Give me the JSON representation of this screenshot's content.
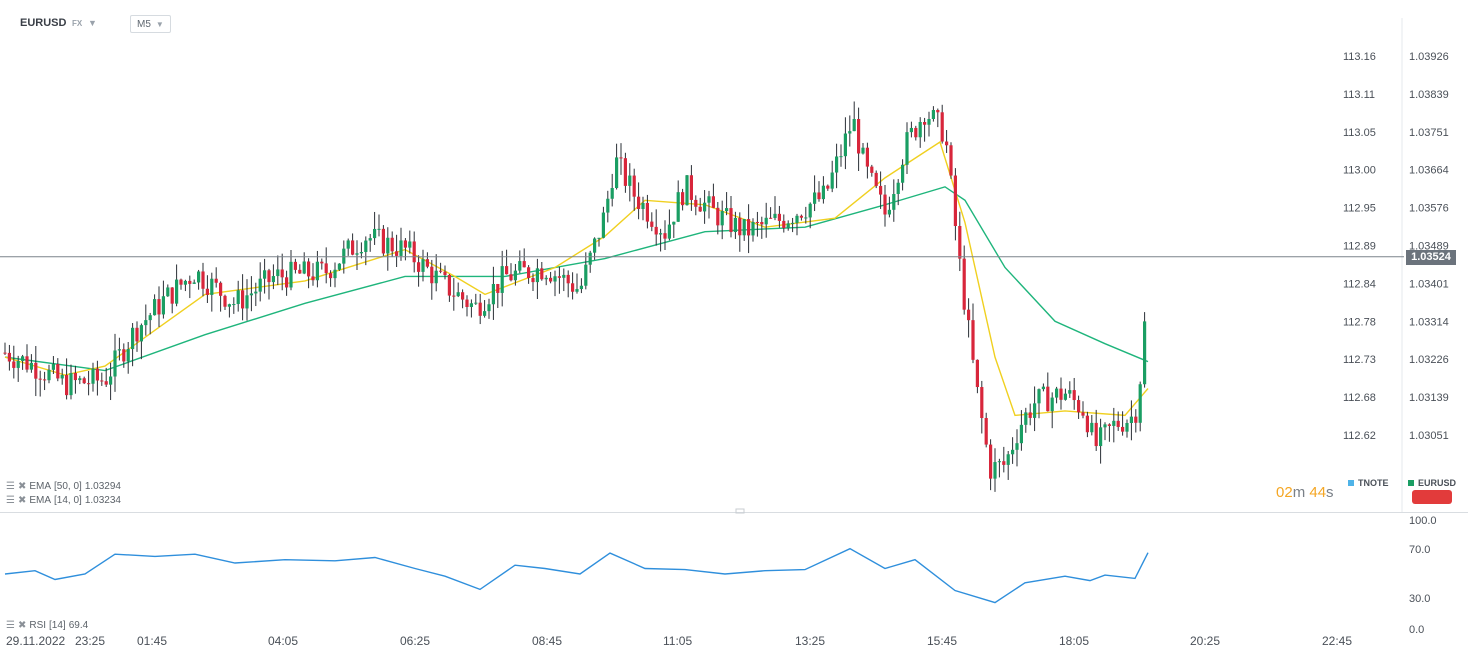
{
  "toolbar": {
    "symbol": "EURUSD",
    "market": "FX",
    "timeframe": "M5"
  },
  "indicators": [
    {
      "name": "EMA",
      "params": "[50, 0]",
      "value": "1.03294",
      "color": "#1fb57c"
    },
    {
      "name": "EMA",
      "params": "[14, 0]",
      "value": "1.03234",
      "color": "#f0d020"
    }
  ],
  "rsi_label": {
    "name": "RSI",
    "params": "[14]",
    "value": "69.4",
    "color": "#2f8fdc"
  },
  "countdown": {
    "minutes": "02",
    "m": "m",
    "seconds": "44",
    "s": "s"
  },
  "legend": [
    {
      "label": "TNOTE",
      "color": "#4fb3e8"
    },
    {
      "label": "EURUSD",
      "color": "#1a9e63"
    }
  ],
  "current_price": "1.03524",
  "colors": {
    "up": "#1a9e63",
    "down": "#d8263b",
    "ema50": "#1fb57c",
    "ema14": "#f0d020",
    "rsi": "#2f8fdc"
  },
  "chart_data": [
    {
      "type": "candlestick",
      "title": "EURUSD",
      "timeframe": "M5",
      "x_ticks": [
        "29.11.2022",
        "23:25",
        "01:45",
        "04:05",
        "06:25",
        "08:45",
        "11:05",
        "13:25",
        "15:45",
        "18:05",
        "20:25",
        "22:45"
      ],
      "y_ticks_right": [
        "1.03926",
        "1.03839",
        "1.03751",
        "1.03664",
        "1.03576",
        "1.03489",
        "1.03401",
        "1.03314",
        "1.03226",
        "1.03139",
        "1.03051"
      ],
      "y_ticks_left": [
        "113.16",
        "113.11",
        "113.05",
        "113.00",
        "112.95",
        "112.89",
        "112.84",
        "112.78",
        "112.73",
        "112.68",
        "112.62"
      ],
      "ylim": [
        1.0297,
        1.0403
      ],
      "current_price": 1.03524,
      "close_path": [
        [
          0,
          1.0331
        ],
        [
          30,
          1.0328
        ],
        [
          60,
          1.0324
        ],
        [
          100,
          1.0325
        ],
        [
          130,
          1.0336
        ],
        [
          160,
          1.0343
        ],
        [
          190,
          1.0349
        ],
        [
          230,
          1.0342
        ],
        [
          270,
          1.0348
        ],
        [
          320,
          1.0349
        ],
        [
          360,
          1.0357
        ],
        [
          400,
          1.0354
        ],
        [
          440,
          1.0346
        ],
        [
          470,
          1.0341
        ],
        [
          500,
          1.0348
        ],
        [
          540,
          1.035
        ],
        [
          575,
          1.0345
        ],
        [
          600,
          1.0362
        ],
        [
          610,
          1.0374
        ],
        [
          630,
          1.0366
        ],
        [
          660,
          1.0358
        ],
        [
          680,
          1.0368
        ],
        [
          710,
          1.0362
        ],
        [
          740,
          1.0358
        ],
        [
          780,
          1.0361
        ],
        [
          820,
          1.0366
        ],
        [
          848,
          1.0383
        ],
        [
          860,
          1.0372
        ],
        [
          880,
          1.0362
        ],
        [
          900,
          1.0377
        ],
        [
          920,
          1.0385
        ],
        [
          940,
          1.038
        ],
        [
          955,
          1.035
        ],
        [
          970,
          1.0325
        ],
        [
          985,
          1.0305
        ],
        [
          1000,
          1.0306
        ],
        [
          1015,
          1.0315
        ],
        [
          1030,
          1.032
        ],
        [
          1060,
          1.0322
        ],
        [
          1080,
          1.0318
        ],
        [
          1090,
          1.031
        ],
        [
          1110,
          1.0315
        ],
        [
          1130,
          1.0317
        ],
        [
          1138,
          1.033
        ],
        [
          1143,
          1.0352
        ]
      ],
      "ema50_path": [
        [
          0,
          1.033
        ],
        [
          100,
          1.0327
        ],
        [
          200,
          1.0335
        ],
        [
          300,
          1.0342
        ],
        [
          400,
          1.0348
        ],
        [
          500,
          1.0348
        ],
        [
          600,
          1.0352
        ],
        [
          700,
          1.0358
        ],
        [
          800,
          1.0359
        ],
        [
          880,
          1.0364
        ],
        [
          940,
          1.0368
        ],
        [
          960,
          1.0365
        ],
        [
          1000,
          1.035
        ],
        [
          1050,
          1.0338
        ],
        [
          1100,
          1.0333
        ],
        [
          1143,
          1.0329
        ]
      ],
      "ema14_path": [
        [
          0,
          1.033
        ],
        [
          60,
          1.0326
        ],
        [
          100,
          1.0328
        ],
        [
          150,
          1.0336
        ],
        [
          200,
          1.0344
        ],
        [
          300,
          1.0347
        ],
        [
          400,
          1.0354
        ],
        [
          450,
          1.0348
        ],
        [
          480,
          1.0344
        ],
        [
          550,
          1.035
        ],
        [
          600,
          1.0357
        ],
        [
          640,
          1.0365
        ],
        [
          700,
          1.0364
        ],
        [
          760,
          1.0359
        ],
        [
          830,
          1.0361
        ],
        [
          880,
          1.037
        ],
        [
          935,
          1.0378
        ],
        [
          960,
          1.036
        ],
        [
          990,
          1.033
        ],
        [
          1010,
          1.0317
        ],
        [
          1060,
          1.0318
        ],
        [
          1120,
          1.0317
        ],
        [
          1143,
          1.0323
        ]
      ]
    },
    {
      "type": "line",
      "title": "RSI [14]",
      "y_ticks": [
        "100.0",
        "70.0",
        "30.0",
        "0.0"
      ],
      "ylim": [
        0,
        100
      ],
      "path": [
        [
          0,
          50
        ],
        [
          30,
          53
        ],
        [
          50,
          45
        ],
        [
          80,
          50
        ],
        [
          110,
          68
        ],
        [
          150,
          66
        ],
        [
          190,
          68
        ],
        [
          230,
          60
        ],
        [
          280,
          63
        ],
        [
          330,
          62
        ],
        [
          370,
          65
        ],
        [
          410,
          55
        ],
        [
          440,
          48
        ],
        [
          475,
          36
        ],
        [
          510,
          58
        ],
        [
          540,
          55
        ],
        [
          575,
          50
        ],
        [
          605,
          69
        ],
        [
          640,
          55
        ],
        [
          680,
          54
        ],
        [
          720,
          50
        ],
        [
          760,
          53
        ],
        [
          800,
          54
        ],
        [
          845,
          73
        ],
        [
          880,
          55
        ],
        [
          910,
          63
        ],
        [
          950,
          35
        ],
        [
          990,
          24
        ],
        [
          1020,
          42
        ],
        [
          1060,
          48
        ],
        [
          1085,
          44
        ],
        [
          1100,
          49
        ],
        [
          1130,
          46
        ],
        [
          1143,
          69.4
        ]
      ]
    }
  ]
}
